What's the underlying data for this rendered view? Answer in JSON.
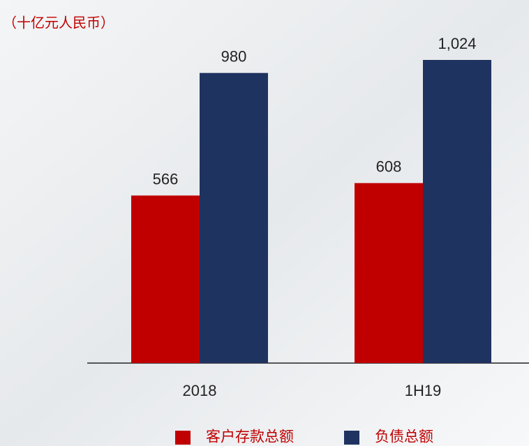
{
  "chart_data": {
    "type": "bar",
    "ylabel": "（十亿元人民币）",
    "categories": [
      "2018",
      "1H19"
    ],
    "series": [
      {
        "name": "客户存款总额",
        "color": "#c00000",
        "values": [
          566,
          608
        ],
        "value_labels": [
          "566",
          "608"
        ]
      },
      {
        "name": "负债总额",
        "color": "#1f3360",
        "values": [
          980,
          1024
        ],
        "value_labels": [
          "980",
          "1,024"
        ]
      }
    ]
  }
}
